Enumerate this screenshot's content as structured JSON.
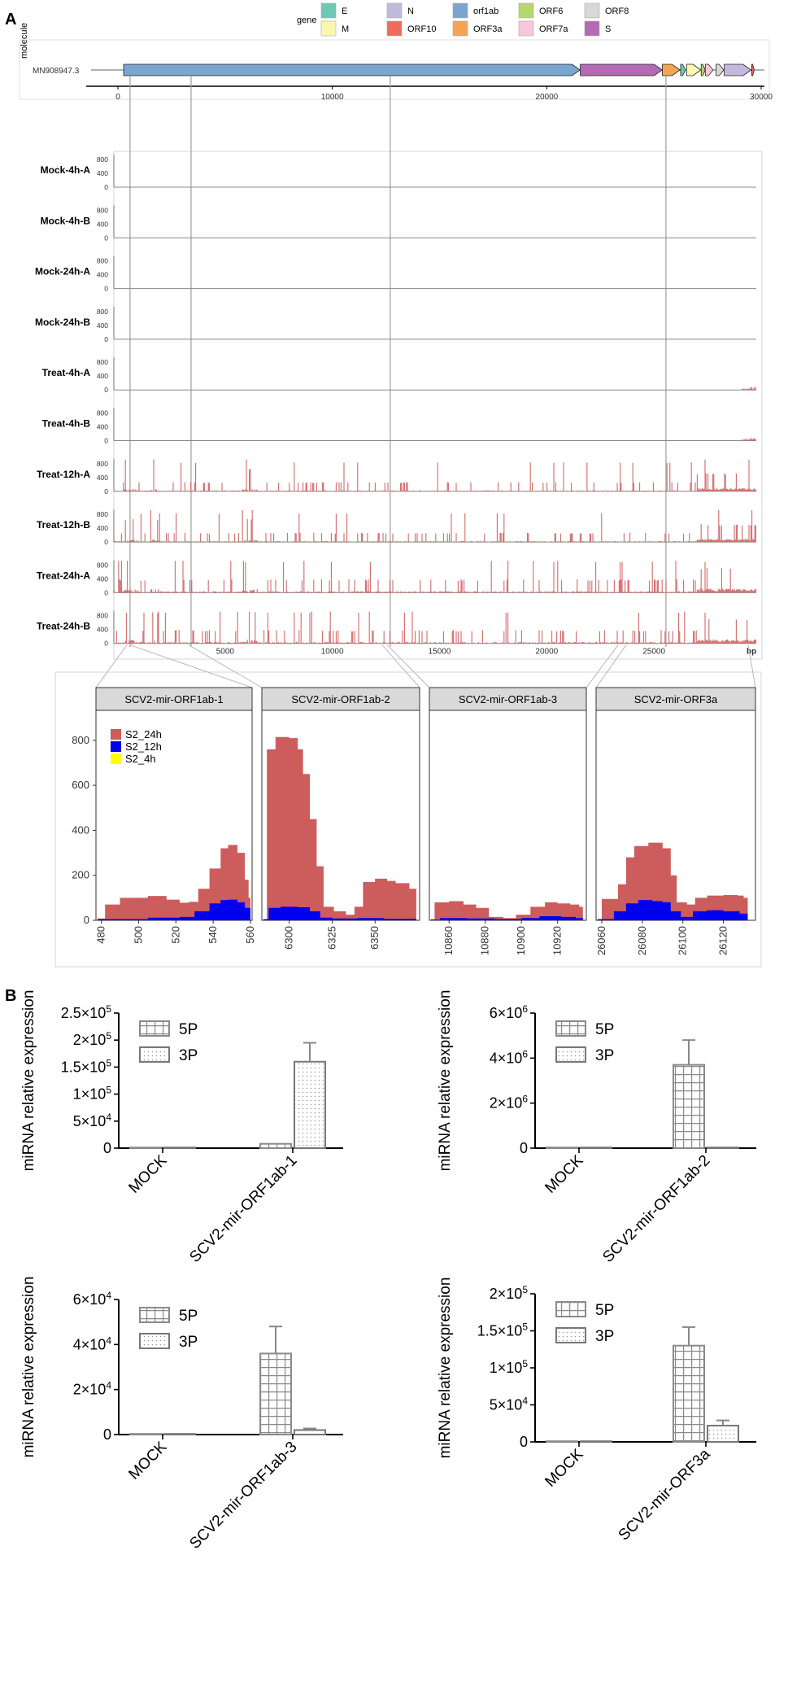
{
  "panel_labels": {
    "a": "A",
    "b": "B"
  },
  "gene_map": {
    "legend_title": "gene",
    "legend_items": [
      {
        "name": "E",
        "color": "#6cc9b4"
      },
      {
        "name": "M",
        "color": "#fbf7b0"
      },
      {
        "name": "N",
        "color": "#c2b9dc"
      },
      {
        "name": "ORF10",
        "color": "#ef6b5e"
      },
      {
        "name": "orf1ab",
        "color": "#7aa6cf"
      },
      {
        "name": "ORF3a",
        "color": "#f4a554"
      },
      {
        "name": "ORF6",
        "color": "#b5d86c"
      },
      {
        "name": "ORF7a",
        "color": "#f9c6da"
      },
      {
        "name": "ORF8",
        "color": "#d8d8d8"
      },
      {
        "name": "S",
        "color": "#b56bb3"
      }
    ],
    "y_axis_label": "molecule",
    "molecule_label": "MN908947.3",
    "x_ticks": [
      "0",
      "10000",
      "20000",
      "30000"
    ],
    "genes": [
      {
        "name": "orf1ab",
        "start": 266,
        "end": 21555,
        "color": "#7aa6cf"
      },
      {
        "name": "S",
        "start": 21563,
        "end": 25384,
        "color": "#b56bb3"
      },
      {
        "name": "ORF3a",
        "start": 25393,
        "end": 26220,
        "color": "#f4a554"
      },
      {
        "name": "E",
        "start": 26245,
        "end": 26472,
        "color": "#6cc9b4"
      },
      {
        "name": "M",
        "start": 26523,
        "end": 27191,
        "color": "#fbf7b0"
      },
      {
        "name": "ORF6",
        "start": 27202,
        "end": 27387,
        "color": "#b5d86c"
      },
      {
        "name": "ORF7a",
        "start": 27394,
        "end": 27759,
        "color": "#f9c6da"
      },
      {
        "name": "ORF8",
        "start": 27894,
        "end": 28259,
        "color": "#d8d8d8"
      },
      {
        "name": "N",
        "start": 28274,
        "end": 29533,
        "color": "#c2b9dc"
      },
      {
        "name": "ORF10",
        "start": 29558,
        "end": 29674,
        "color": "#ef6b5e"
      }
    ]
  },
  "coverage": {
    "tracks": [
      {
        "name": "Mock-4h-A",
        "level": 0
      },
      {
        "name": "Mock-4h-B",
        "level": 0
      },
      {
        "name": "Mock-24h-A",
        "level": 0
      },
      {
        "name": "Mock-24h-B",
        "level": 0
      },
      {
        "name": "Treat-4h-A",
        "level": 1
      },
      {
        "name": "Treat-4h-B",
        "level": 1
      },
      {
        "name": "Treat-12h-A",
        "level": 2
      },
      {
        "name": "Treat-12h-B",
        "level": 2
      },
      {
        "name": "Treat-24h-A",
        "level": 3
      },
      {
        "name": "Treat-24h-B",
        "level": 3
      }
    ],
    "y_ticks": [
      "800",
      "400",
      "0"
    ],
    "x_ticks": [
      "5000",
      "10000",
      "15000",
      "20000",
      "25000"
    ],
    "x_unit": "bp",
    "color": "#d46a6a"
  },
  "zoom": {
    "y_ticks": [
      "0",
      "200",
      "400",
      "600",
      "800"
    ],
    "legend": [
      {
        "name": "S2_24h",
        "color": "#cd5c5c"
      },
      {
        "name": "S2_12h",
        "color": "#0000ee"
      },
      {
        "name": "S2_4h",
        "color": "#ffff00"
      }
    ],
    "facets": [
      {
        "title": "SCV2-mir-ORF1ab-1",
        "x_range": [
          478,
          560
        ],
        "x_ticks": [
          "480",
          "500",
          "520",
          "540",
          "560"
        ],
        "x_tick_values": [
          480,
          500,
          520,
          540,
          560
        ],
        "s24": [
          [
            478,
            8
          ],
          [
            482,
            70
          ],
          [
            490,
            100
          ],
          [
            505,
            108
          ],
          [
            515,
            92
          ],
          [
            522,
            78
          ],
          [
            527,
            82
          ],
          [
            532,
            140
          ],
          [
            538,
            230
          ],
          [
            544,
            320
          ],
          [
            548,
            335
          ],
          [
            553,
            300
          ],
          [
            557,
            180
          ],
          [
            559,
            100
          ],
          [
            560,
            90
          ]
        ],
        "s12": [
          [
            478,
            5
          ],
          [
            505,
            12
          ],
          [
            522,
            15
          ],
          [
            530,
            40
          ],
          [
            538,
            75
          ],
          [
            544,
            90
          ],
          [
            548,
            92
          ],
          [
            553,
            80
          ],
          [
            557,
            55
          ],
          [
            560,
            40
          ]
        ]
      },
      {
        "title": "SCV2-mir-ORF1ab-2",
        "x_range": [
          6285,
          6375
        ],
        "x_ticks": [
          "6300",
          "6325",
          "6350"
        ],
        "x_tick_values": [
          6300,
          6325,
          6350
        ],
        "s24": [
          [
            6285,
            5
          ],
          [
            6287,
            760
          ],
          [
            6292,
            815
          ],
          [
            6300,
            810
          ],
          [
            6305,
            760
          ],
          [
            6308,
            650
          ],
          [
            6312,
            450
          ],
          [
            6316,
            240
          ],
          [
            6320,
            60
          ],
          [
            6326,
            40
          ],
          [
            6333,
            25
          ],
          [
            6338,
            60
          ],
          [
            6343,
            170
          ],
          [
            6350,
            185
          ],
          [
            6357,
            175
          ],
          [
            6362,
            165
          ],
          [
            6370,
            140
          ],
          [
            6374,
            5
          ]
        ],
        "s12": [
          [
            6285,
            5
          ],
          [
            6288,
            55
          ],
          [
            6295,
            60
          ],
          [
            6305,
            58
          ],
          [
            6312,
            40
          ],
          [
            6318,
            12
          ],
          [
            6325,
            8
          ],
          [
            6340,
            10
          ],
          [
            6355,
            6
          ],
          [
            6374,
            5
          ]
        ]
      },
      {
        "title": "SCV2-mir-ORF1ab-3",
        "x_range": [
          10850,
          10935
        ],
        "x_ticks": [
          "10860",
          "10880",
          "10900",
          "10920"
        ],
        "x_tick_values": [
          10860,
          10880,
          10900,
          10920
        ],
        "s24": [
          [
            10850,
            5
          ],
          [
            10852,
            80
          ],
          [
            10860,
            85
          ],
          [
            10868,
            70
          ],
          [
            10875,
            55
          ],
          [
            10882,
            15
          ],
          [
            10890,
            10
          ],
          [
            10897,
            25
          ],
          [
            10905,
            60
          ],
          [
            10913,
            80
          ],
          [
            10920,
            75
          ],
          [
            10927,
            70
          ],
          [
            10932,
            60
          ],
          [
            10934,
            5
          ]
        ],
        "s12": [
          [
            10850,
            3
          ],
          [
            10855,
            10
          ],
          [
            10870,
            8
          ],
          [
            10885,
            5
          ],
          [
            10900,
            10
          ],
          [
            10910,
            18
          ],
          [
            10922,
            15
          ],
          [
            10930,
            10
          ],
          [
            10934,
            3
          ]
        ]
      },
      {
        "title": "SCV2-mir-ORF3a",
        "x_range": [
          26058,
          26135
        ],
        "x_ticks": [
          "26060",
          "26080",
          "26100",
          "26120"
        ],
        "x_tick_values": [
          26060,
          26080,
          26100,
          26120
        ],
        "s24": [
          [
            26058,
            5
          ],
          [
            26060,
            95
          ],
          [
            26068,
            160
          ],
          [
            26072,
            280
          ],
          [
            26076,
            330
          ],
          [
            26083,
            345
          ],
          [
            26090,
            320
          ],
          [
            26094,
            200
          ],
          [
            26097,
            80
          ],
          [
            26102,
            70
          ],
          [
            26106,
            100
          ],
          [
            26112,
            110
          ],
          [
            26120,
            112
          ],
          [
            26127,
            110
          ],
          [
            26130,
            100
          ],
          [
            26132,
            5
          ]
        ],
        "s12": [
          [
            26058,
            5
          ],
          [
            26066,
            40
          ],
          [
            26072,
            75
          ],
          [
            26078,
            90
          ],
          [
            26085,
            85
          ],
          [
            26090,
            80
          ],
          [
            26094,
            40
          ],
          [
            26099,
            15
          ],
          [
            26105,
            40
          ],
          [
            26112,
            45
          ],
          [
            26120,
            40
          ],
          [
            26128,
            30
          ],
          [
            26132,
            5
          ]
        ]
      }
    ]
  },
  "chart_data": [
    {
      "type": "bar",
      "title": "",
      "ylabel": "miRNA relative expression",
      "categories": [
        "MOCK",
        "SCV2-mir-ORF1ab-1"
      ],
      "series": [
        {
          "name": "5P",
          "values": [
            0,
            8000
          ],
          "errors": [
            0,
            0
          ]
        },
        {
          "name": "3P",
          "values": [
            0,
            160000
          ],
          "errors": [
            0,
            35000
          ]
        }
      ],
      "ylim": [
        0,
        250000
      ],
      "y_ticks": [
        0,
        50000,
        100000,
        150000,
        200000,
        250000
      ],
      "y_tick_labels": [
        "0",
        "5×10",
        "1×10",
        "1.5×10",
        "2×10",
        "2.5×10"
      ],
      "y_tick_exps": [
        "",
        "4",
        "5",
        "5",
        "5",
        "5"
      ]
    },
    {
      "type": "bar",
      "title": "",
      "ylabel": "miRNA relative expression",
      "categories": [
        "MOCK",
        "SCV2-mir-ORF1ab-2"
      ],
      "series": [
        {
          "name": "5P",
          "values": [
            0,
            3700000
          ],
          "errors": [
            0,
            1100000
          ]
        },
        {
          "name": "3P",
          "values": [
            0,
            15000
          ],
          "errors": [
            0,
            0
          ]
        }
      ],
      "ylim": [
        0,
        6000000
      ],
      "y_ticks": [
        0,
        2000000,
        4000000,
        6000000
      ],
      "y_tick_labels": [
        "0",
        "2×10",
        "4×10",
        "6×10"
      ],
      "y_tick_exps": [
        "",
        "6",
        "6",
        "6"
      ]
    },
    {
      "type": "bar",
      "title": "",
      "ylabel": "miRNA relative expression",
      "categories": [
        "MOCK",
        "SCV2-mir-ORF1ab-3"
      ],
      "series": [
        {
          "name": "5P",
          "values": [
            0,
            36000
          ],
          "errors": [
            0,
            12000
          ]
        },
        {
          "name": "3P",
          "values": [
            0,
            2000
          ],
          "errors": [
            0,
            700
          ]
        }
      ],
      "ylim": [
        0,
        60000
      ],
      "y_ticks": [
        0,
        20000,
        40000,
        60000
      ],
      "y_tick_labels": [
        "0",
        "2×10",
        "4×10",
        "6×10"
      ],
      "y_tick_exps": [
        "",
        "4",
        "4",
        "4"
      ]
    },
    {
      "type": "bar",
      "title": "",
      "ylabel": "miRNA relative expression",
      "categories": [
        "MOCK",
        "SCV2-mir-ORF3a"
      ],
      "series": [
        {
          "name": "5P",
          "values": [
            0,
            130000
          ],
          "errors": [
            0,
            25000
          ]
        },
        {
          "name": "3P",
          "values": [
            0,
            22000
          ],
          "errors": [
            0,
            7000
          ]
        }
      ],
      "ylim": [
        0,
        200000
      ],
      "y_ticks": [
        0,
        50000,
        100000,
        150000,
        200000
      ],
      "y_tick_labels": [
        "0",
        "5×10",
        "1×10",
        "1.5×10",
        "2×10"
      ],
      "y_tick_exps": [
        "",
        "4",
        "5",
        "5",
        "5"
      ]
    }
  ]
}
